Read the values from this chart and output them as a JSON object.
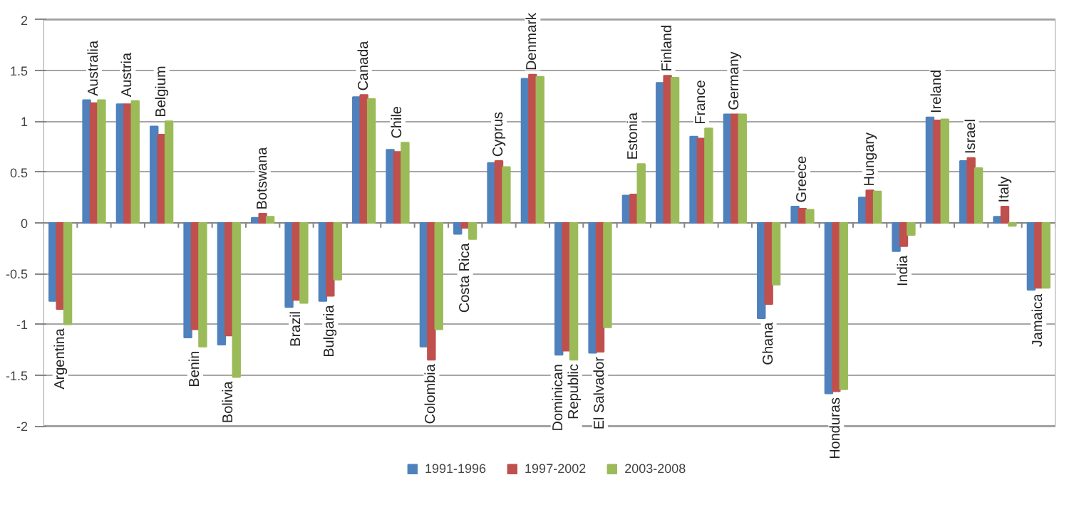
{
  "chart_data": {
    "type": "bar",
    "categories": [
      "Argentina",
      "Australia",
      "Austria",
      "Belgium",
      "Benin",
      "Bolivia",
      "Botswana",
      "Brazil",
      "Bulgaria",
      "Canada",
      "Chile",
      "Colombia",
      "Costa Rica",
      "Cyprus",
      "Denmark",
      "Dominican Republic",
      "El Salvador",
      "Estonia",
      "Finland",
      "France",
      "Germany",
      "Ghana",
      "Greece",
      "Honduras",
      "Hungary",
      "India",
      "Ireland",
      "Israel",
      "Italy",
      "Jamaica"
    ],
    "series": [
      {
        "name": "1991-1996",
        "color": "#4f81bd",
        "values": [
          -0.77,
          1.21,
          1.17,
          0.95,
          -1.13,
          -1.2,
          0.05,
          -0.83,
          -0.77,
          1.24,
          0.72,
          -1.22,
          -0.11,
          0.59,
          1.42,
          -1.3,
          -1.28,
          0.27,
          1.38,
          0.85,
          1.07,
          -0.94,
          0.16,
          -1.68,
          0.25,
          -0.28,
          1.04,
          0.61,
          0.06,
          -0.66
        ]
      },
      {
        "name": "1997-2002",
        "color": "#c0504d",
        "values": [
          -0.85,
          1.18,
          1.17,
          0.87,
          -1.05,
          -1.11,
          0.09,
          -0.76,
          -0.72,
          1.26,
          0.7,
          -1.35,
          -0.05,
          0.61,
          1.46,
          -1.26,
          -1.27,
          0.28,
          1.45,
          0.83,
          1.07,
          -0.8,
          0.14,
          -1.66,
          0.32,
          -0.23,
          1.01,
          0.64,
          0.16,
          -0.64
        ]
      },
      {
        "name": "2003-2008",
        "color": "#9bbb59",
        "values": [
          -1.0,
          1.21,
          1.2,
          1.0,
          -1.22,
          -1.52,
          0.06,
          -0.79,
          -0.56,
          1.22,
          0.79,
          -1.05,
          -0.16,
          0.55,
          1.44,
          -1.35,
          -1.03,
          0.58,
          1.43,
          0.93,
          1.07,
          -0.61,
          0.13,
          -1.64,
          0.31,
          -0.12,
          1.02,
          0.54,
          -0.03,
          -0.64
        ]
      }
    ],
    "ylim": [
      -2,
      2
    ],
    "yticks": [
      -2,
      -1.5,
      -1,
      -0.5,
      0,
      0.5,
      1,
      1.5,
      2
    ],
    "grid": "y",
    "legend": "bottom"
  }
}
